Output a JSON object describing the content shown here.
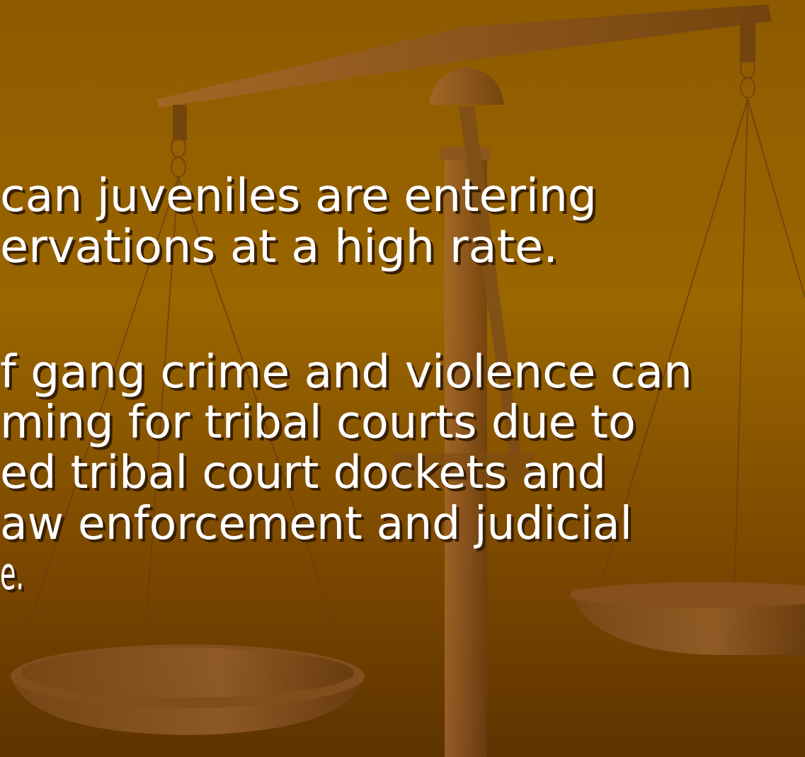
{
  "slide": {
    "bullets": [
      {
        "lines": [
          "can juveniles are entering",
          "ervations at a high rate."
        ]
      },
      {
        "lines": [
          "f gang crime and violence can",
          "ming for tribal courts due to",
          "ed tribal court dockets and",
          "aw enforcement and judicial",
          "e."
        ]
      }
    ]
  }
}
